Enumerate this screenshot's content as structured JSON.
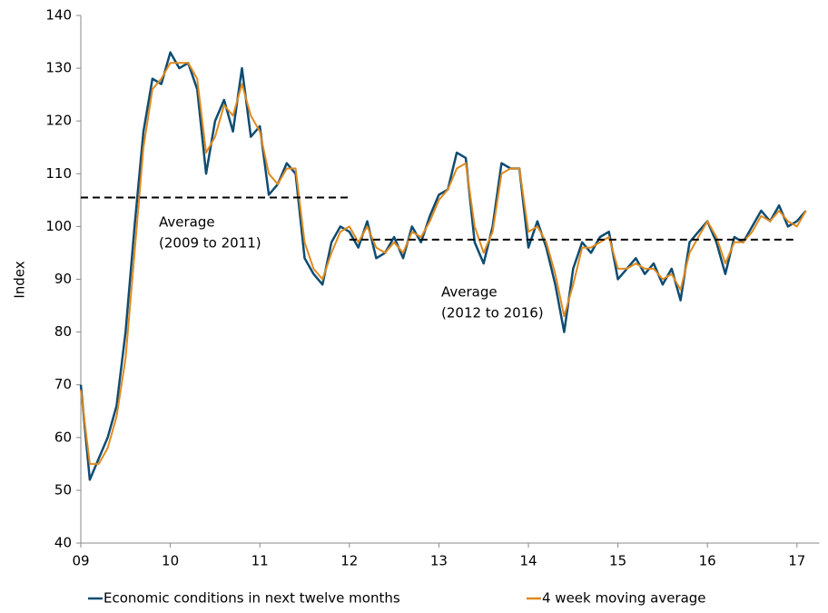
{
  "chart_data": {
    "type": "line",
    "y_label": "Index",
    "x": [
      9.0,
      9.1,
      9.2,
      9.3,
      9.4,
      9.5,
      9.6,
      9.7,
      9.8,
      9.9,
      10.0,
      10.1,
      10.2,
      10.3,
      10.4,
      10.5,
      10.6,
      10.7,
      10.8,
      10.9,
      11.0,
      11.1,
      11.2,
      11.3,
      11.4,
      11.5,
      11.6,
      11.7,
      11.8,
      11.9,
      12.0,
      12.1,
      12.2,
      12.3,
      12.4,
      12.5,
      12.6,
      12.7,
      12.8,
      12.9,
      13.0,
      13.1,
      13.2,
      13.3,
      13.4,
      13.5,
      13.6,
      13.7,
      13.8,
      13.9,
      14.0,
      14.1,
      14.2,
      14.3,
      14.4,
      14.5,
      14.6,
      14.7,
      14.8,
      14.9,
      15.0,
      15.1,
      15.2,
      15.3,
      15.4,
      15.5,
      15.6,
      15.7,
      15.8,
      15.9,
      16.0,
      16.1,
      16.2,
      16.3,
      16.4,
      16.5,
      16.6,
      16.7,
      16.8,
      16.9,
      17.0,
      17.1
    ],
    "series": [
      {
        "name": "Economic conditions in next twelve months",
        "color": "#0e4c72",
        "values": [
          70,
          52,
          56,
          60,
          66,
          80,
          100,
          118,
          128,
          127,
          133,
          130,
          131,
          126,
          110,
          120,
          124,
          118,
          130,
          117,
          119,
          106,
          108,
          112,
          110,
          94,
          91,
          89,
          97,
          100,
          99,
          96,
          101,
          94,
          95,
          98,
          94,
          100,
          97,
          102,
          106,
          107,
          114,
          113,
          97,
          93,
          100,
          112,
          111,
          111,
          96,
          101,
          96,
          89,
          80,
          92,
          97,
          95,
          98,
          99,
          90,
          92,
          94,
          91,
          93,
          89,
          92,
          86,
          97,
          99,
          101,
          97,
          91,
          98,
          97,
          100,
          103,
          101,
          104,
          100,
          101,
          103
        ]
      },
      {
        "name": "4 week moving average",
        "color": "#e08a1e",
        "values": [
          69,
          55,
          55,
          58,
          64,
          75,
          95,
          115,
          126,
          128,
          131,
          131,
          131,
          128,
          114,
          117,
          123,
          121,
          127,
          121,
          118,
          110,
          108,
          111,
          111,
          97,
          92,
          90,
          95,
          99,
          100,
          97,
          100,
          96,
          95,
          97,
          95,
          99,
          98,
          101,
          105,
          107,
          111,
          112,
          100,
          95,
          99,
          110,
          111,
          111,
          99,
          100,
          97,
          91,
          83,
          89,
          96,
          96,
          97,
          98,
          92,
          92,
          93,
          92,
          92,
          90,
          91,
          88,
          95,
          98,
          101,
          98,
          93,
          97,
          97,
          99,
          102,
          101,
          103,
          101,
          100,
          103
        ]
      }
    ],
    "averages": [
      {
        "label": [
          "Average",
          "(2009 to 2011)"
        ],
        "value": 105.5,
        "x": [
          9,
          12
        ]
      },
      {
        "label": [
          "Average",
          "(2012 to 2016)"
        ],
        "value": 97.5,
        "x": [
          12,
          17
        ]
      }
    ],
    "xlim": [
      9,
      17.25
    ],
    "xticks": [
      {
        "value": 9,
        "label": "09"
      },
      10,
      11,
      12,
      13,
      14,
      15,
      16,
      17
    ],
    "ylim": [
      40,
      140
    ],
    "yticks": [
      40,
      50,
      60,
      70,
      80,
      90,
      100,
      110,
      120,
      130,
      140
    ],
    "grid": false,
    "legend": "bottom"
  }
}
